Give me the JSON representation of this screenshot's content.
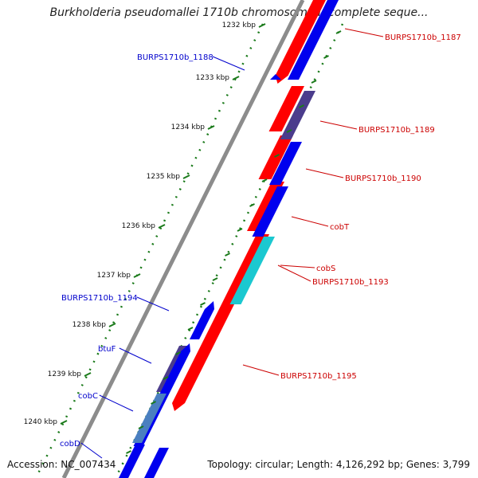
{
  "title": "Burkholderia pseudomallei 1710b chromosome I, complete seque...",
  "footer": {
    "accession": "Accession: NC_007434",
    "topology": "Topology: circular; Length: 4,126,292 bp; Genes: 3,799"
  },
  "colors": {
    "forward": "#ff0000",
    "reverse": "#0000ee",
    "overlap": "#4b3c8c",
    "cyan": "#1bc8d0",
    "steel": "#4a7fc0",
    "tick": "#1a7a1a",
    "backbone": "#8c8c8c",
    "label_red": "#cc0000",
    "label_blue": "#0000cc"
  },
  "ruler_ticks": [
    {
      "label": "1232 kbp"
    },
    {
      "label": "1233 kbp"
    },
    {
      "label": "1234 kbp"
    },
    {
      "label": "1235 kbp"
    },
    {
      "label": "1236 kbp"
    },
    {
      "label": "1237 kbp"
    },
    {
      "label": "1238 kbp"
    },
    {
      "label": "1239 kbp"
    },
    {
      "label": "1240 kbp"
    }
  ],
  "gene_labels": [
    {
      "name": "BURPS1710b_1187",
      "strand": "forward"
    },
    {
      "name": "BURPS1710b_1188",
      "strand": "reverse"
    },
    {
      "name": "BURPS1710b_1189",
      "strand": "forward"
    },
    {
      "name": "BURPS1710b_1190",
      "strand": "forward"
    },
    {
      "name": "cobT",
      "strand": "forward"
    },
    {
      "name": "cobS",
      "strand": "forward"
    },
    {
      "name": "BURPS1710b_1193",
      "strand": "forward"
    },
    {
      "name": "BURPS1710b_1194",
      "strand": "reverse"
    },
    {
      "name": "btuF",
      "strand": "reverse"
    },
    {
      "name": "BURPS1710b_1195",
      "strand": "forward"
    },
    {
      "name": "cobC",
      "strand": "reverse"
    },
    {
      "name": "cobD",
      "strand": "reverse"
    }
  ]
}
